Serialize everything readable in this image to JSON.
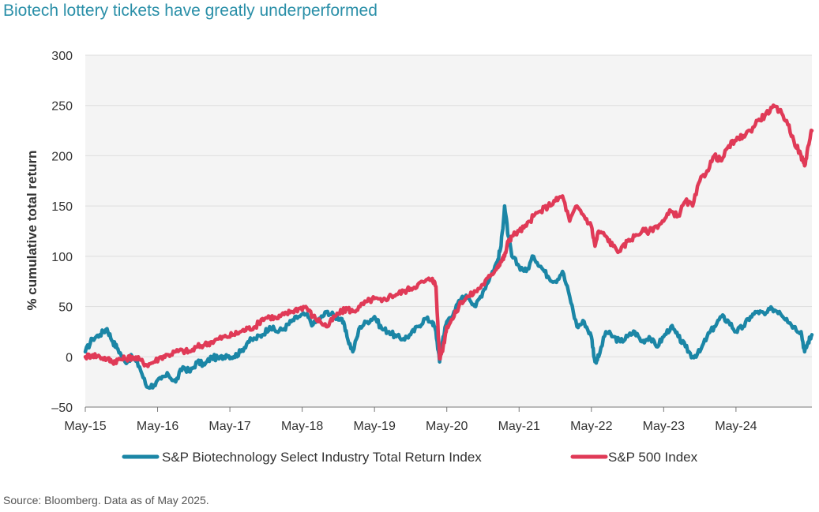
{
  "title": "Biotech lottery tickets have greatly underperformed",
  "source": "Source: Bloomberg. Data as of May 2025.",
  "colors": {
    "biotech": "#1b86a6",
    "sp500": "#e03a57",
    "plot_bg": "#f4f4f4",
    "grid": "#dddddd",
    "title": "#2a8fa8"
  },
  "chart_data": {
    "type": "line",
    "title": "Biotech lottery tickets have greatly underperformed",
    "xlabel": "",
    "ylabel": "% cumulative total return",
    "ylim": [
      -50,
      300
    ],
    "yticks": [
      -50,
      0,
      50,
      100,
      150,
      200,
      250,
      300
    ],
    "ytick_labels": [
      "–50",
      "0",
      "50",
      "100",
      "150",
      "200",
      "250",
      "300"
    ],
    "xlim": [
      0,
      10.05
    ],
    "xticks": [
      0,
      1,
      2,
      3,
      4,
      5,
      6,
      7,
      8,
      9
    ],
    "xtick_labels": [
      "May-15",
      "May-16",
      "May-17",
      "May-18",
      "May-19",
      "May-20",
      "May-21",
      "May-22",
      "May-23",
      "May-24"
    ],
    "x_units": "years since May 2015",
    "legend_position": "bottom",
    "series": [
      {
        "name": "S&P Biotechnology Select Industry Total Return Index",
        "color": "#1b86a6",
        "x": [
          0,
          0.1,
          0.2,
          0.3,
          0.38,
          0.45,
          0.55,
          0.65,
          0.75,
          0.85,
          0.95,
          1.05,
          1.15,
          1.25,
          1.35,
          1.45,
          1.55,
          1.65,
          1.75,
          1.85,
          1.95,
          2.05,
          2.15,
          2.25,
          2.35,
          2.45,
          2.55,
          2.65,
          2.75,
          2.85,
          2.95,
          3.05,
          3.15,
          3.25,
          3.35,
          3.45,
          3.55,
          3.62,
          3.7,
          3.8,
          3.9,
          4.0,
          4.1,
          4.2,
          4.3,
          4.4,
          4.5,
          4.6,
          4.7,
          4.8,
          4.85,
          4.9,
          4.95,
          5.0,
          5.1,
          5.2,
          5.3,
          5.4,
          5.5,
          5.6,
          5.7,
          5.75,
          5.8,
          5.85,
          5.9,
          6.0,
          6.1,
          6.2,
          6.3,
          6.4,
          6.5,
          6.6,
          6.7,
          6.8,
          6.9,
          7.0,
          7.05,
          7.1,
          7.2,
          7.3,
          7.4,
          7.5,
          7.6,
          7.7,
          7.8,
          7.9,
          8.0,
          8.1,
          8.2,
          8.3,
          8.4,
          8.5,
          8.6,
          8.7,
          8.8,
          8.9,
          9.0,
          9.1,
          9.2,
          9.3,
          9.4,
          9.5,
          9.6,
          9.7,
          9.8,
          9.9,
          9.95,
          10.0,
          10.05
        ],
        "values": [
          5,
          18,
          22,
          28,
          15,
          8,
          -5,
          0,
          -10,
          -30,
          -28,
          -22,
          -18,
          -25,
          -10,
          -15,
          -5,
          -8,
          0,
          -2,
          2,
          0,
          5,
          15,
          18,
          22,
          30,
          25,
          28,
          35,
          40,
          42,
          32,
          38,
          45,
          40,
          38,
          20,
          5,
          30,
          35,
          40,
          28,
          25,
          20,
          18,
          22,
          30,
          38,
          35,
          25,
          -5,
          20,
          35,
          45,
          58,
          60,
          50,
          65,
          80,
          95,
          110,
          150,
          120,
          100,
          90,
          85,
          100,
          90,
          80,
          75,
          85,
          60,
          30,
          35,
          20,
          -5,
          0,
          25,
          20,
          15,
          20,
          25,
          15,
          20,
          10,
          20,
          30,
          20,
          10,
          0,
          5,
          20,
          30,
          40,
          35,
          25,
          30,
          40,
          45,
          42,
          48,
          45,
          38,
          30,
          25,
          5,
          15,
          22
        ]
      },
      {
        "name": "S&P 500 Index",
        "color": "#e03a57",
        "x": [
          0,
          0.1,
          0.2,
          0.3,
          0.38,
          0.45,
          0.55,
          0.65,
          0.75,
          0.85,
          0.95,
          1.05,
          1.15,
          1.25,
          1.35,
          1.45,
          1.55,
          1.65,
          1.75,
          1.85,
          1.95,
          2.05,
          2.15,
          2.25,
          2.35,
          2.45,
          2.55,
          2.65,
          2.75,
          2.85,
          2.95,
          3.05,
          3.15,
          3.25,
          3.35,
          3.45,
          3.55,
          3.62,
          3.7,
          3.8,
          3.9,
          4.0,
          4.1,
          4.2,
          4.3,
          4.4,
          4.5,
          4.6,
          4.7,
          4.8,
          4.85,
          4.9,
          4.95,
          5.0,
          5.1,
          5.2,
          5.3,
          5.4,
          5.5,
          5.6,
          5.7,
          5.75,
          5.8,
          5.85,
          5.9,
          6.0,
          6.1,
          6.2,
          6.3,
          6.4,
          6.5,
          6.6,
          6.7,
          6.8,
          6.9,
          7.0,
          7.05,
          7.1,
          7.2,
          7.3,
          7.4,
          7.5,
          7.6,
          7.7,
          7.8,
          7.9,
          8.0,
          8.1,
          8.2,
          8.3,
          8.4,
          8.5,
          8.6,
          8.7,
          8.8,
          8.9,
          9.0,
          9.1,
          9.2,
          9.3,
          9.4,
          9.5,
          9.6,
          9.7,
          9.8,
          9.9,
          9.95,
          10.0,
          10.05
        ],
        "values": [
          0,
          2,
          0,
          -2,
          -5,
          -3,
          -2,
          0,
          -3,
          -8,
          -5,
          0,
          2,
          5,
          6,
          5,
          10,
          12,
          15,
          18,
          20,
          22,
          25,
          28,
          30,
          38,
          40,
          38,
          42,
          45,
          48,
          50,
          40,
          35,
          30,
          40,
          45,
          48,
          45,
          50,
          55,
          58,
          55,
          60,
          62,
          65,
          68,
          72,
          75,
          78,
          70,
          -2,
          10,
          30,
          40,
          55,
          60,
          65,
          72,
          80,
          90,
          95,
          100,
          115,
          120,
          125,
          130,
          140,
          145,
          150,
          155,
          160,
          135,
          150,
          140,
          130,
          110,
          125,
          120,
          110,
          105,
          115,
          120,
          125,
          125,
          130,
          135,
          145,
          140,
          155,
          150,
          175,
          185,
          200,
          195,
          210,
          215,
          220,
          225,
          235,
          240,
          248,
          245,
          235,
          215,
          200,
          190,
          210,
          225
        ]
      }
    ]
  }
}
